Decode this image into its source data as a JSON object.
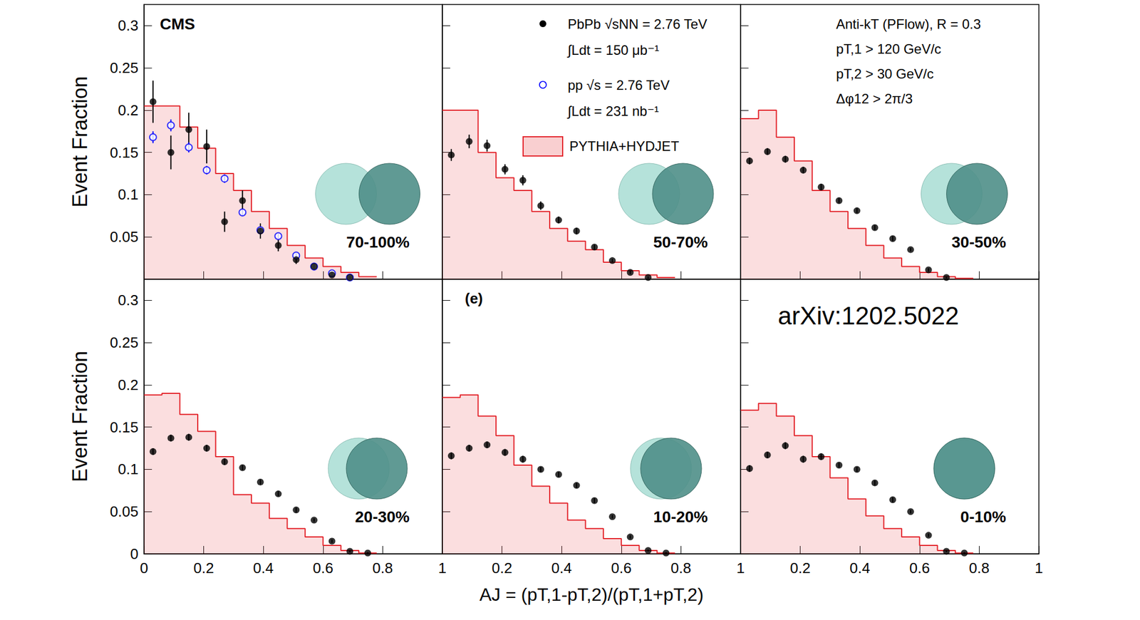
{
  "chart_data": [
    {
      "type": "scatter",
      "title": "70-100%",
      "ylabel": "Event Fraction",
      "annotations": [
        "CMS"
      ],
      "xlim": [
        0,
        1
      ],
      "xticks": [
        0,
        0.2,
        0.4,
        0.6,
        0.8,
        1
      ],
      "ylim": [
        0,
        0.325
      ],
      "yticks": [
        0.05,
        0.1,
        0.15,
        0.2,
        0.25,
        0.3
      ],
      "grid": false,
      "tick_labels": "y",
      "series": [
        {
          "name": "PbPb √sNN = 2.76 TeV",
          "luminosity": "∫Ldt = 150 μb⁻¹",
          "type": "scatter",
          "marker": "circle",
          "color": "#000000",
          "x": [
            0.03,
            0.09,
            0.15,
            0.21,
            0.27,
            0.33,
            0.39,
            0.45,
            0.51,
            0.57,
            0.63,
            0.69
          ],
          "values": [
            0.21,
            0.15,
            0.177,
            0.157,
            0.068,
            0.093,
            0.057,
            0.04,
            0.023,
            0.015,
            0.005,
            0.002
          ],
          "errors": [
            0.025,
            0.02,
            0.02,
            0.02,
            0.012,
            0.012,
            0.009,
            0.007,
            0.005,
            0.004,
            0.002,
            0.001
          ]
        },
        {
          "name": "pp √s = 2.76 TeV",
          "luminosity": "∫Ldt = 231 nb⁻¹",
          "type": "scatter",
          "marker": "open_circle",
          "color": "#0000ff",
          "x": [
            0.03,
            0.09,
            0.15,
            0.21,
            0.27,
            0.33,
            0.39,
            0.45,
            0.51,
            0.57,
            0.63,
            0.69
          ],
          "values": [
            0.168,
            0.182,
            0.156,
            0.129,
            0.119,
            0.079,
            0.058,
            0.051,
            0.028,
            0.015,
            0.007,
            0.002
          ],
          "errors": [
            0.007,
            0.007,
            0.006,
            0.005,
            0.005,
            0.004,
            0.004,
            0.003,
            0.003,
            0.002,
            0.002,
            0.001
          ]
        },
        {
          "name": "PYTHIA+HYDJET",
          "type": "histogram",
          "color": "#e3242b",
          "bins": [
            0,
            0.06,
            0.12,
            0.18,
            0.24,
            0.3,
            0.36,
            0.42,
            0.48,
            0.54,
            0.6,
            0.66,
            0.72,
            0.78
          ],
          "values": [
            0.205,
            0.205,
            0.18,
            0.155,
            0.125,
            0.105,
            0.08,
            0.06,
            0.04,
            0.025,
            0.015,
            0.008,
            0.003
          ]
        }
      ]
    },
    {
      "type": "scatter",
      "title": "50-70%",
      "legend": "top",
      "xlim": [
        0,
        1
      ],
      "xticks": [
        0,
        0.2,
        0.4,
        0.6,
        0.8,
        1
      ],
      "ylim": [
        0,
        0.325
      ],
      "yticks": [
        0.05,
        0.1,
        0.15,
        0.2,
        0.25,
        0.3
      ],
      "grid": false,
      "tick_labels": false,
      "series": [
        {
          "name": "PbPb √sNN = 2.76 TeV",
          "type": "scatter",
          "marker": "circle",
          "color": "#000000",
          "x": [
            0.03,
            0.09,
            0.15,
            0.21,
            0.27,
            0.33,
            0.39,
            0.45,
            0.51,
            0.57,
            0.63,
            0.69
          ],
          "values": [
            0.147,
            0.163,
            0.158,
            0.13,
            0.117,
            0.087,
            0.07,
            0.057,
            0.038,
            0.022,
            0.008,
            0.002
          ],
          "errors": [
            0.007,
            0.008,
            0.007,
            0.006,
            0.006,
            0.005,
            0.004,
            0.004,
            0.003,
            0.002,
            0.002,
            0.001
          ]
        },
        {
          "name": "PYTHIA+HYDJET",
          "type": "histogram",
          "color": "#e3242b",
          "bins": [
            0,
            0.06,
            0.12,
            0.18,
            0.24,
            0.3,
            0.36,
            0.42,
            0.48,
            0.54,
            0.6,
            0.66,
            0.72,
            0.78
          ],
          "values": [
            0.2,
            0.2,
            0.15,
            0.12,
            0.105,
            0.08,
            0.06,
            0.045,
            0.035,
            0.02,
            0.01,
            0.005,
            0.002
          ]
        }
      ]
    },
    {
      "type": "scatter",
      "title": "30-50%",
      "annotations": [
        "Anti-kT (PFlow), R = 0.3",
        "pT,1 > 120 GeV/c",
        "pT,2 > 30 GeV/c",
        "Δφ12 > 2π/3"
      ],
      "xlim": [
        0,
        1
      ],
      "xticks": [
        0,
        0.2,
        0.4,
        0.6,
        0.8,
        1
      ],
      "ylim": [
        0,
        0.325
      ],
      "yticks": [
        0.05,
        0.1,
        0.15,
        0.2,
        0.25,
        0.3
      ],
      "grid": false,
      "tick_labels": false,
      "series": [
        {
          "name": "PbPb √sNN = 2.76 TeV",
          "type": "scatter",
          "marker": "circle",
          "color": "#000000",
          "x": [
            0.03,
            0.09,
            0.15,
            0.21,
            0.27,
            0.33,
            0.39,
            0.45,
            0.51,
            0.57,
            0.63,
            0.69
          ],
          "values": [
            0.14,
            0.151,
            0.142,
            0.129,
            0.109,
            0.093,
            0.081,
            0.061,
            0.048,
            0.035,
            0.011,
            0.002
          ],
          "errors": [
            0.004,
            0.004,
            0.004,
            0.004,
            0.004,
            0.003,
            0.003,
            0.003,
            0.003,
            0.002,
            0.002,
            0.001
          ]
        },
        {
          "name": "PYTHIA+HYDJET",
          "type": "histogram",
          "color": "#e3242b",
          "bins": [
            0,
            0.06,
            0.12,
            0.18,
            0.24,
            0.3,
            0.36,
            0.42,
            0.48,
            0.54,
            0.6,
            0.66,
            0.72,
            0.78
          ],
          "values": [
            0.19,
            0.2,
            0.168,
            0.14,
            0.105,
            0.08,
            0.06,
            0.04,
            0.025,
            0.015,
            0.008,
            0.003,
            0.001
          ]
        }
      ]
    },
    {
      "type": "scatter",
      "title": "20-30%",
      "ylabel": "Event Fraction",
      "xlim": [
        0,
        1
      ],
      "xticks": [
        0,
        0.2,
        0.4,
        0.6,
        0.8,
        1
      ],
      "ylim": [
        0,
        0.325
      ],
      "yticks": [
        0,
        0.05,
        0.1,
        0.15,
        0.2,
        0.25,
        0.3
      ],
      "grid": false,
      "tick_labels": true,
      "series": [
        {
          "name": "PbPb √sNN = 2.76 TeV",
          "type": "scatter",
          "marker": "circle",
          "color": "#000000",
          "x": [
            0.03,
            0.09,
            0.15,
            0.21,
            0.27,
            0.33,
            0.39,
            0.45,
            0.51,
            0.57,
            0.63,
            0.69,
            0.75
          ],
          "values": [
            0.121,
            0.137,
            0.138,
            0.125,
            0.109,
            0.102,
            0.085,
            0.071,
            0.052,
            0.04,
            0.015,
            0.003,
            0.001
          ],
          "errors": [
            0.004,
            0.004,
            0.004,
            0.004,
            0.004,
            0.003,
            0.003,
            0.003,
            0.003,
            0.002,
            0.002,
            0.001,
            0.001
          ]
        },
        {
          "name": "PYTHIA+HYDJET",
          "type": "histogram",
          "color": "#e3242b",
          "bins": [
            0,
            0.06,
            0.12,
            0.18,
            0.24,
            0.3,
            0.36,
            0.42,
            0.48,
            0.54,
            0.6,
            0.66,
            0.72,
            0.78
          ],
          "values": [
            0.188,
            0.19,
            0.165,
            0.145,
            0.115,
            0.07,
            0.06,
            0.042,
            0.03,
            0.02,
            0.01,
            0.004,
            0.001
          ]
        }
      ]
    },
    {
      "type": "scatter",
      "title": "10-20%",
      "annotations": [
        "(e)"
      ],
      "xlabel": "AJ = (pT,1-pT,2)/(pT,1+pT,2)",
      "xlim": [
        0,
        1
      ],
      "xticks": [
        0.2,
        0.4,
        0.6,
        0.8,
        1
      ],
      "ylim": [
        0,
        0.325
      ],
      "yticks": [
        0,
        0.05,
        0.1,
        0.15,
        0.2,
        0.25,
        0.3
      ],
      "grid": false,
      "tick_labels": "x",
      "series": [
        {
          "name": "PbPb √sNN = 2.76 TeV",
          "type": "scatter",
          "marker": "circle",
          "color": "#000000",
          "x": [
            0.03,
            0.09,
            0.15,
            0.21,
            0.27,
            0.33,
            0.39,
            0.45,
            0.51,
            0.57,
            0.63,
            0.69,
            0.75
          ],
          "values": [
            0.116,
            0.125,
            0.129,
            0.12,
            0.112,
            0.1,
            0.094,
            0.081,
            0.063,
            0.044,
            0.02,
            0.004,
            0.001
          ],
          "errors": [
            0.004,
            0.004,
            0.004,
            0.004,
            0.004,
            0.003,
            0.003,
            0.003,
            0.003,
            0.002,
            0.002,
            0.001,
            0.001
          ]
        },
        {
          "name": "PYTHIA+HYDJET",
          "type": "histogram",
          "color": "#e3242b",
          "bins": [
            0,
            0.06,
            0.12,
            0.18,
            0.24,
            0.3,
            0.36,
            0.42,
            0.48,
            0.54,
            0.6,
            0.66,
            0.72,
            0.78
          ],
          "values": [
            0.185,
            0.188,
            0.163,
            0.14,
            0.105,
            0.08,
            0.06,
            0.04,
            0.03,
            0.018,
            0.01,
            0.004,
            0.001
          ]
        }
      ]
    },
    {
      "type": "scatter",
      "title": "0-10%",
      "annotations": [
        "arXiv:1202.5022"
      ],
      "xlim": [
        0,
        1
      ],
      "xticks": [
        0.2,
        0.4,
        0.6,
        0.8,
        1
      ],
      "ylim": [
        0,
        0.325
      ],
      "yticks": [
        0,
        0.05,
        0.1,
        0.15,
        0.2,
        0.25,
        0.3
      ],
      "grid": false,
      "tick_labels": "x",
      "series": [
        {
          "name": "PbPb √sNN = 2.76 TeV",
          "type": "scatter",
          "marker": "circle",
          "color": "#000000",
          "x": [
            0.03,
            0.09,
            0.15,
            0.21,
            0.27,
            0.33,
            0.39,
            0.45,
            0.51,
            0.57,
            0.63,
            0.69,
            0.75
          ],
          "values": [
            0.101,
            0.117,
            0.128,
            0.112,
            0.115,
            0.105,
            0.1,
            0.084,
            0.064,
            0.05,
            0.022,
            0.003,
            0.001
          ],
          "errors": [
            0.004,
            0.004,
            0.004,
            0.004,
            0.004,
            0.003,
            0.003,
            0.003,
            0.003,
            0.002,
            0.002,
            0.001,
            0.001
          ]
        },
        {
          "name": "PYTHIA+HYDJET",
          "type": "histogram",
          "color": "#e3242b",
          "bins": [
            0,
            0.06,
            0.12,
            0.18,
            0.24,
            0.3,
            0.36,
            0.42,
            0.48,
            0.54,
            0.6,
            0.66,
            0.72,
            0.78
          ],
          "values": [
            0.17,
            0.178,
            0.163,
            0.14,
            0.115,
            0.09,
            0.065,
            0.045,
            0.03,
            0.02,
            0.01,
            0.004,
            0.001
          ]
        }
      ]
    }
  ]
}
